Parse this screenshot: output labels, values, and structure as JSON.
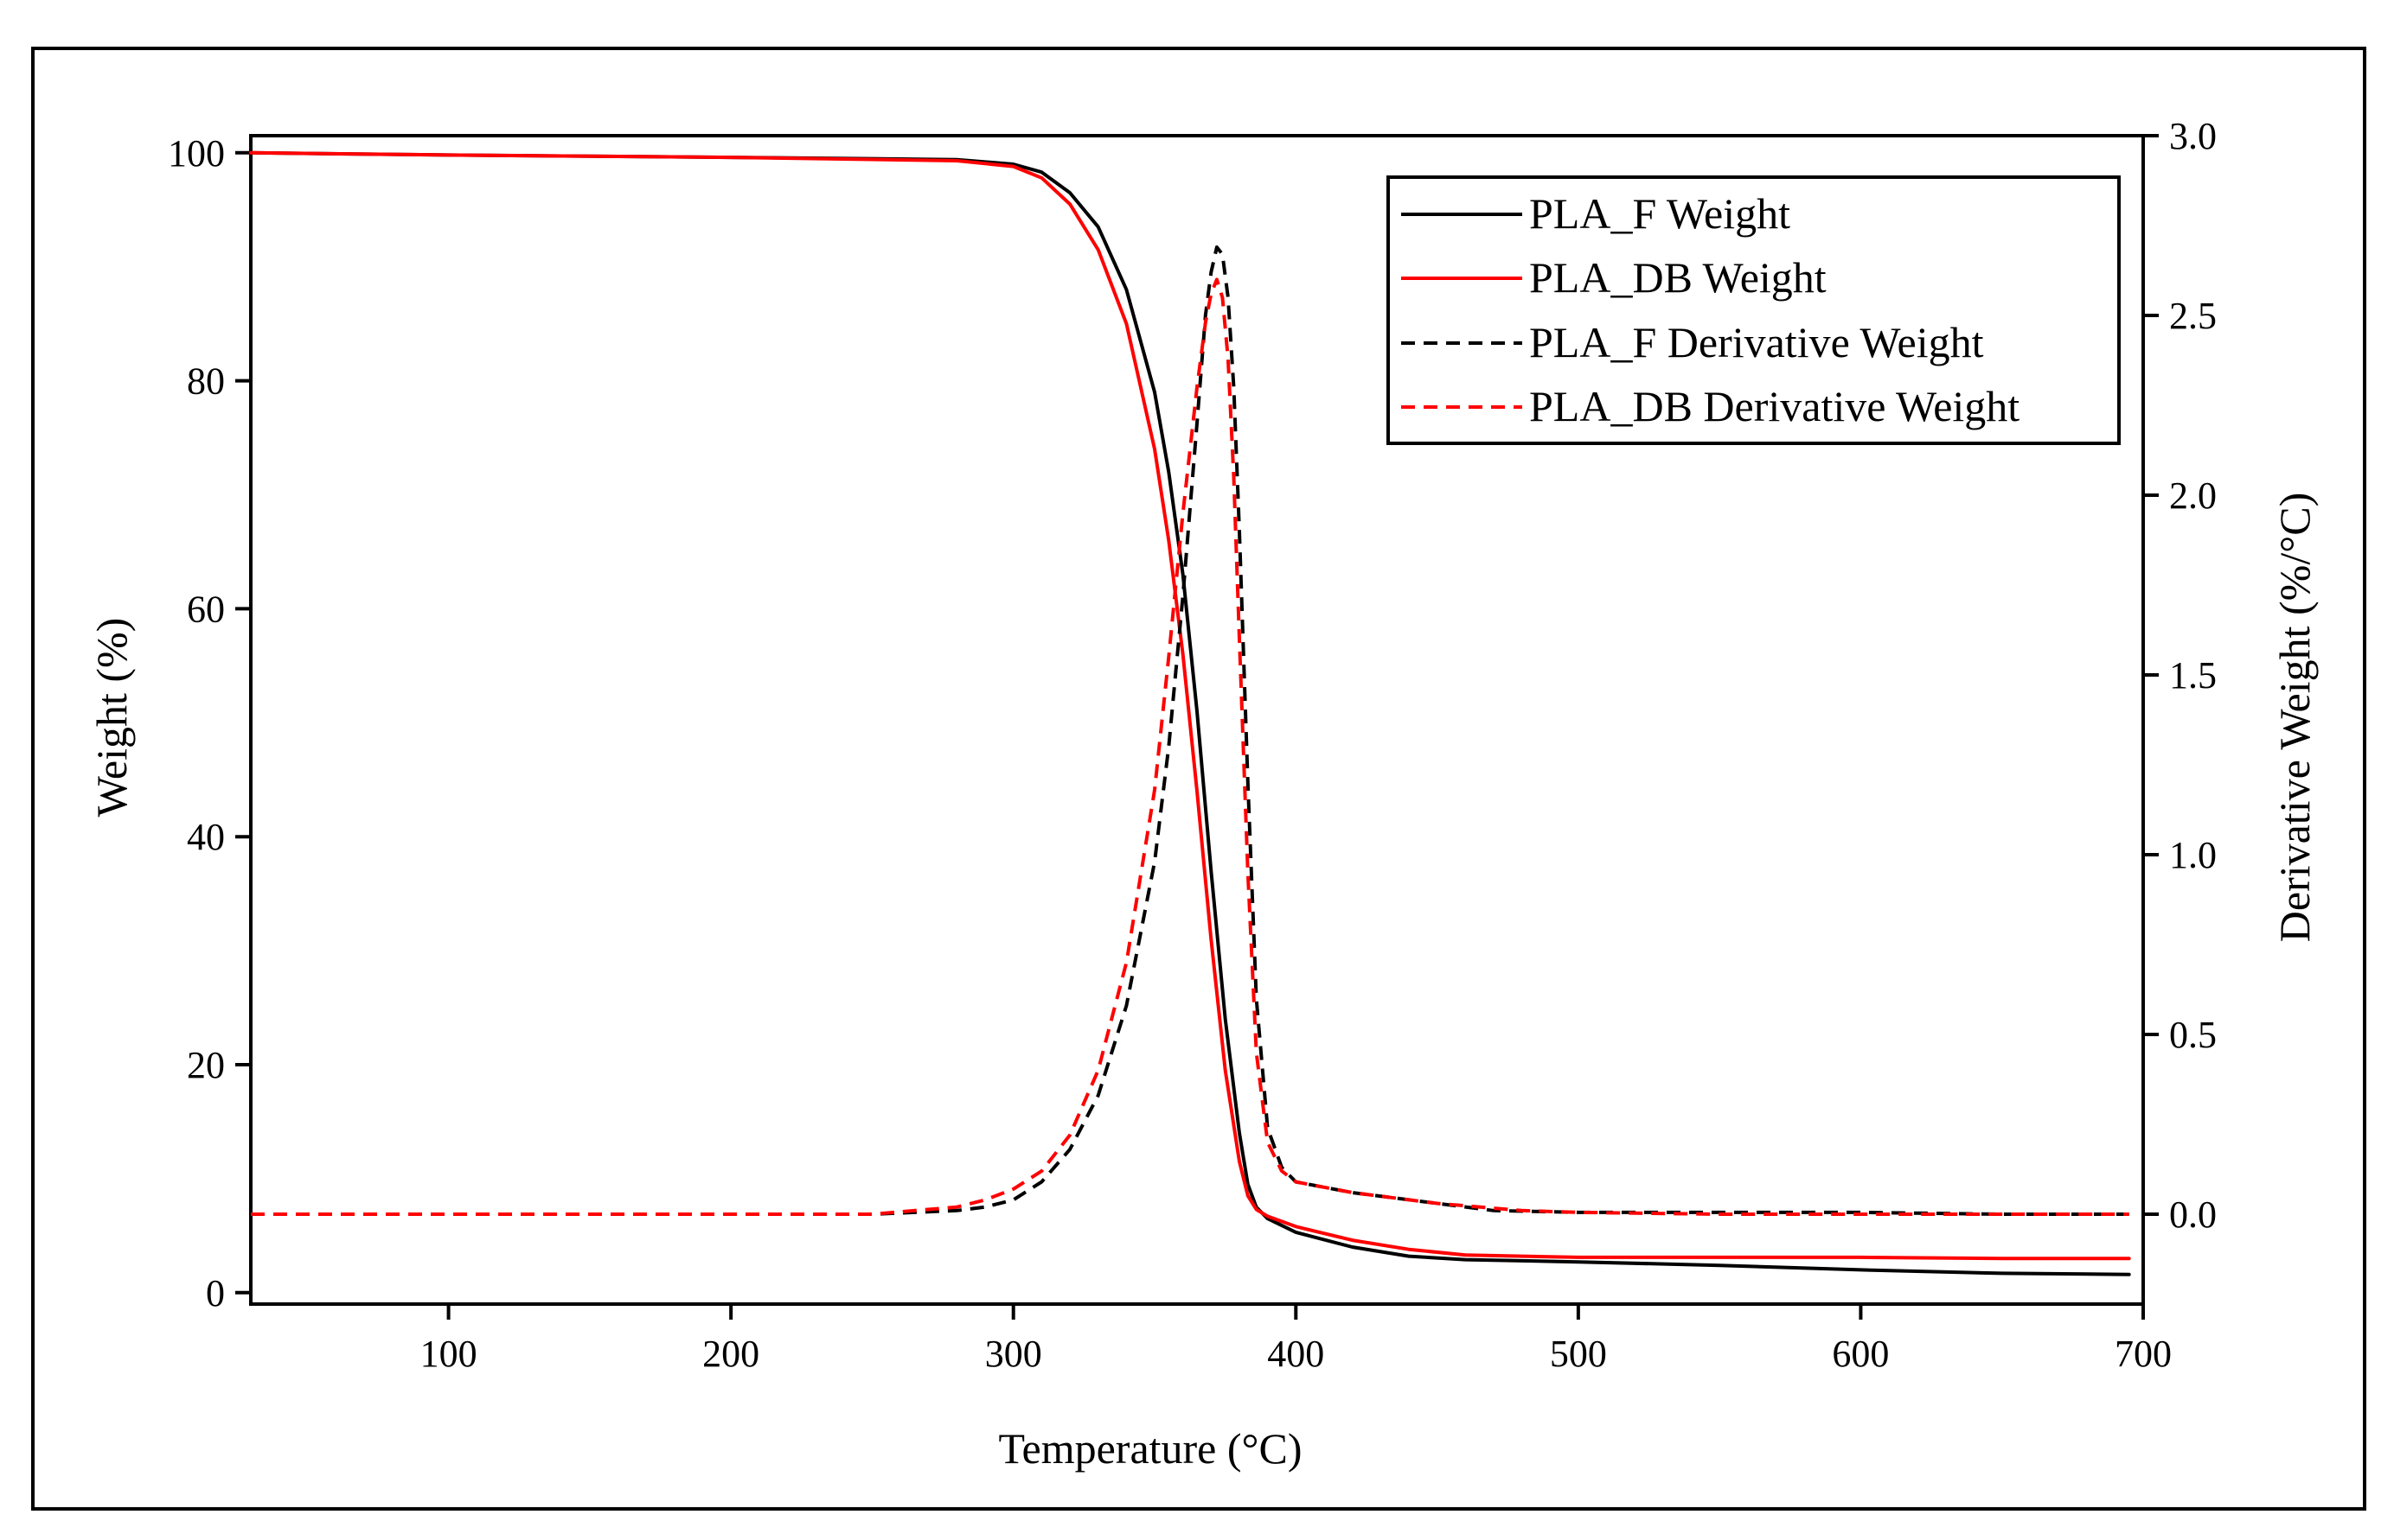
{
  "chart_data": {
    "type": "line",
    "title": "",
    "xlabel": "Temperature (°C)",
    "ylabel": "Weight (%)",
    "y2label": "Derivative Weight (%/°C)",
    "xlim": [
      30,
      700
    ],
    "ylim": [
      -1,
      101.5
    ],
    "y2lim": [
      -0.25,
      3.0
    ],
    "xticks": [
      100,
      200,
      300,
      400,
      500,
      600,
      700
    ],
    "yticks": [
      0,
      20,
      40,
      60,
      80,
      100
    ],
    "y2ticks": [
      0.0,
      0.5,
      1.0,
      1.5,
      2.0,
      2.5,
      3.0
    ],
    "xtick_labels": [
      "100",
      "200",
      "300",
      "400",
      "500",
      "600",
      "700"
    ],
    "ytick_labels": [
      "0",
      "20",
      "40",
      "60",
      "80",
      "100"
    ],
    "y2tick_labels": [
      "0.0",
      "0.5",
      "1.0",
      "1.5",
      "2.0",
      "2.5",
      "3.0"
    ],
    "legend_position": "top-right",
    "grid": false,
    "series": [
      {
        "name": "PLA_F Weight",
        "axis": "left",
        "color": "#000000",
        "dash": "solid",
        "x": [
          30,
          100,
          200,
          280,
          300,
          310,
          320,
          330,
          340,
          350,
          355,
          360,
          365,
          370,
          375,
          380,
          383,
          386,
          390,
          400,
          420,
          440,
          460,
          500,
          550,
          600,
          650,
          695
        ],
        "y": [
          100,
          99.8,
          99.6,
          99.4,
          99.0,
          98.3,
          96.5,
          93.5,
          88.0,
          79.0,
          72.0,
          63.0,
          51.0,
          37.0,
          24.0,
          14.0,
          9.5,
          7.5,
          6.5,
          5.3,
          4.0,
          3.2,
          2.9,
          2.7,
          2.4,
          2.0,
          1.7,
          1.6
        ]
      },
      {
        "name": "PLA_DB Weight",
        "axis": "left",
        "color": "#ff0000",
        "dash": "solid",
        "x": [
          30,
          100,
          200,
          280,
          300,
          310,
          320,
          330,
          340,
          350,
          355,
          360,
          365,
          370,
          375,
          380,
          383,
          386,
          390,
          400,
          420,
          440,
          460,
          500,
          550,
          600,
          650,
          695
        ],
        "y": [
          100,
          99.8,
          99.6,
          99.3,
          98.8,
          97.8,
          95.5,
          91.5,
          85.0,
          74.0,
          66.0,
          56.0,
          44.0,
          31.0,
          19.5,
          11.5,
          8.5,
          7.3,
          6.7,
          5.8,
          4.6,
          3.8,
          3.3,
          3.1,
          3.1,
          3.1,
          3.0,
          3.0
        ]
      },
      {
        "name": "PLA_F Derivative Weight",
        "axis": "right",
        "color": "#000000",
        "dash": "dashed",
        "x": [
          30,
          200,
          250,
          280,
          290,
          300,
          310,
          320,
          330,
          340,
          350,
          355,
          360,
          365,
          368,
          370,
          372,
          374,
          376,
          378,
          380,
          383,
          386,
          390,
          395,
          400,
          420,
          450,
          470,
          500,
          550,
          600,
          650,
          695
        ],
        "y": [
          0.0,
          0.0,
          0.0,
          0.01,
          0.02,
          0.04,
          0.09,
          0.18,
          0.33,
          0.58,
          0.98,
          1.3,
          1.72,
          2.2,
          2.5,
          2.62,
          2.69,
          2.67,
          2.55,
          2.3,
          1.9,
          1.2,
          0.6,
          0.24,
          0.13,
          0.09,
          0.06,
          0.03,
          0.01,
          0.005,
          0.005,
          0.005,
          0.0,
          0.0
        ]
      },
      {
        "name": "PLA_DB Derivative Weight",
        "axis": "right",
        "color": "#ff0000",
        "dash": "dashed",
        "x": [
          30,
          200,
          250,
          280,
          290,
          300,
          310,
          320,
          330,
          340,
          350,
          355,
          360,
          365,
          368,
          370,
          372,
          374,
          376,
          378,
          380,
          383,
          386,
          390,
          395,
          400,
          420,
          450,
          480,
          500,
          550,
          600,
          650,
          695
        ],
        "y": [
          0.0,
          0.0,
          0.0,
          0.02,
          0.04,
          0.07,
          0.12,
          0.22,
          0.4,
          0.7,
          1.18,
          1.55,
          1.95,
          2.3,
          2.48,
          2.56,
          2.6,
          2.55,
          2.38,
          2.05,
          1.6,
          0.95,
          0.45,
          0.2,
          0.12,
          0.09,
          0.06,
          0.03,
          0.01,
          0.005,
          0.0,
          0.0,
          0.0,
          0.0
        ]
      }
    ]
  }
}
